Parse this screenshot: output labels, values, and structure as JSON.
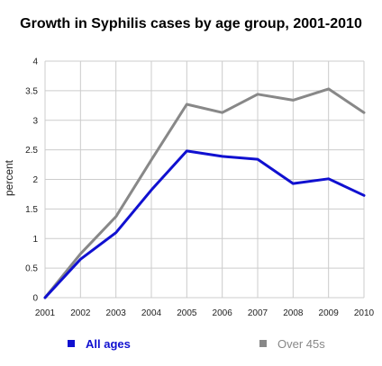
{
  "chart_data": {
    "type": "line",
    "title": "Growth in Syphilis cases by age group, 2001-2010",
    "xlabel": "",
    "ylabel": "percent",
    "x": [
      "2001",
      "2002",
      "2003",
      "2004",
      "2005",
      "2006",
      "2007",
      "2008",
      "2009",
      "2010"
    ],
    "y_ticks": [
      "0",
      "0.5",
      "1",
      "1.5",
      "2",
      "2.5",
      "3",
      "3.5",
      "4"
    ],
    "ylim": [
      0,
      4
    ],
    "grid": true,
    "legend_position": "bottom",
    "series": [
      {
        "name": "All ages",
        "color": "#1010d0",
        "values": [
          0,
          0.65,
          1.1,
          1.82,
          2.48,
          2.39,
          2.34,
          1.93,
          2.01,
          1.73
        ]
      },
      {
        "name": "Over 45s",
        "color": "#888888",
        "values": [
          0,
          0.74,
          1.37,
          2.33,
          3.27,
          3.13,
          3.44,
          3.34,
          3.53,
          3.13
        ]
      }
    ]
  }
}
